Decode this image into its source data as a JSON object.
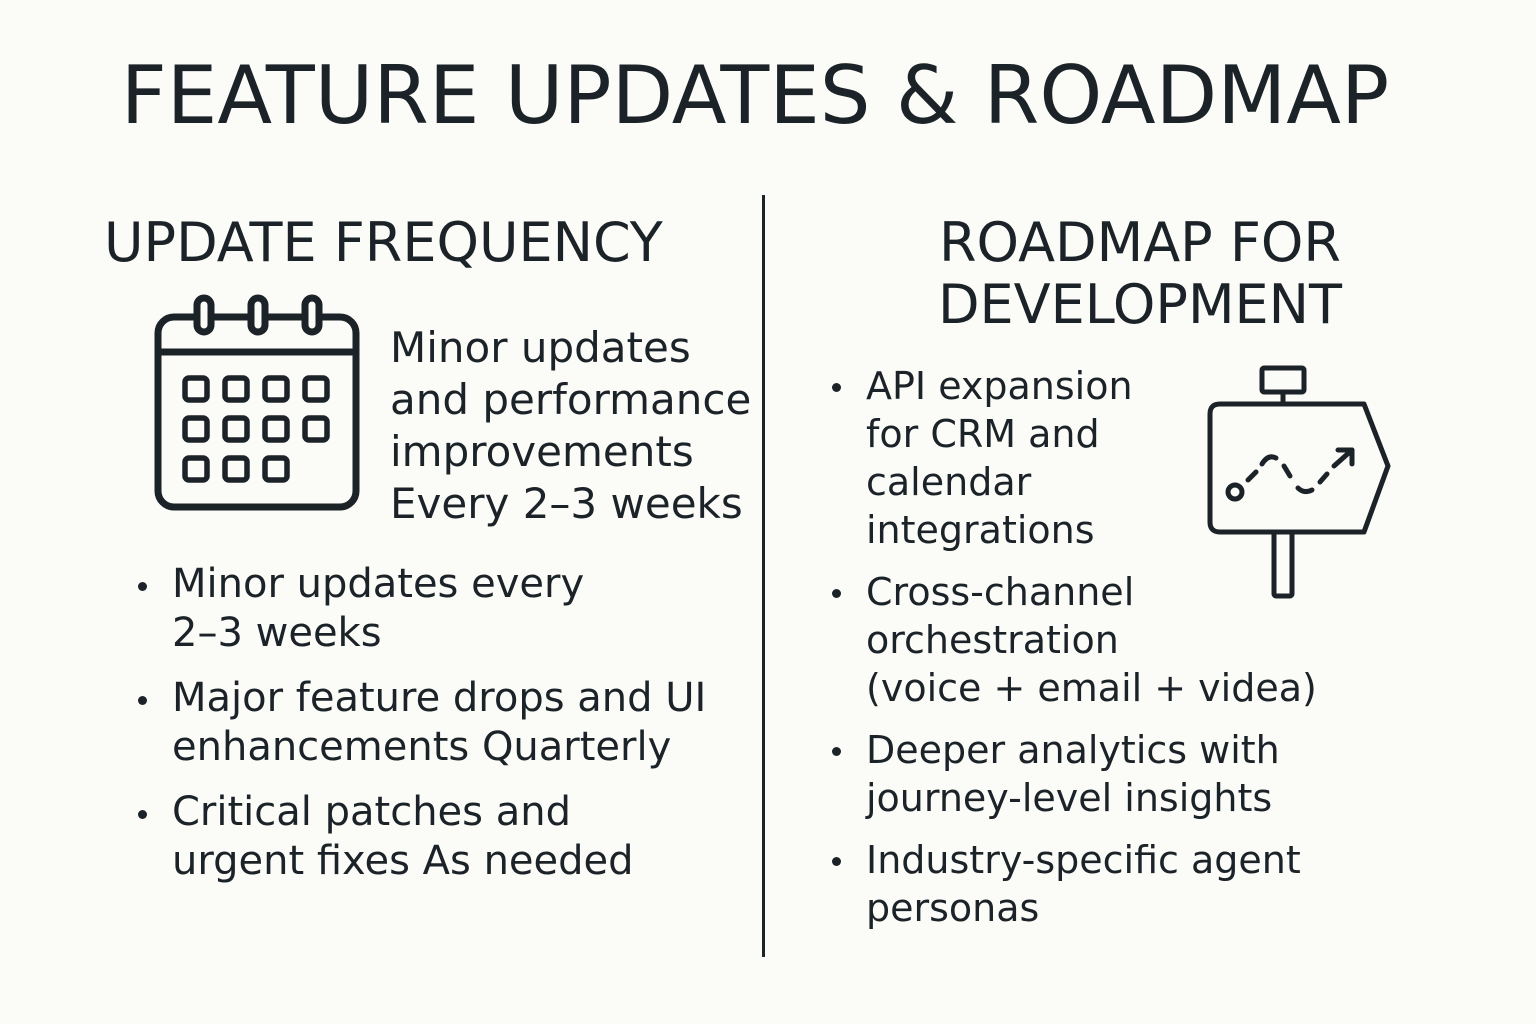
{
  "title": "FEATURE UPDATES & ROADMAP",
  "left": {
    "heading": "UPDATE FREQUENCY",
    "icon": "calendar-icon",
    "summary_lines": [
      "Minor updates",
      "and performance",
      "improvements",
      "Every 2–3 weeks"
    ],
    "bullets": [
      [
        "Minor updates every",
        "2–3 weeks"
      ],
      [
        "Major feature drops and UI",
        "enhancements Quarterly"
      ],
      [
        "Critical patches and",
        "urgent fixes As needed"
      ]
    ]
  },
  "right": {
    "heading_lines": [
      "ROADMAP FOR",
      "DEVELOPMENT"
    ],
    "icon": "roadmap-sign-icon",
    "bullets": [
      [
        "API expansion",
        "for CRM and",
        "calendar",
        "integrations"
      ],
      [
        "Cross-channel",
        "orchestration",
        "(voice + email + videa)"
      ],
      [
        "Deeper analytics with",
        "journey-level insights"
      ],
      [
        "Industry-specific agent",
        "personas"
      ]
    ]
  },
  "colors": {
    "background": "#fbfbf8",
    "ink": "#1c2328"
  }
}
